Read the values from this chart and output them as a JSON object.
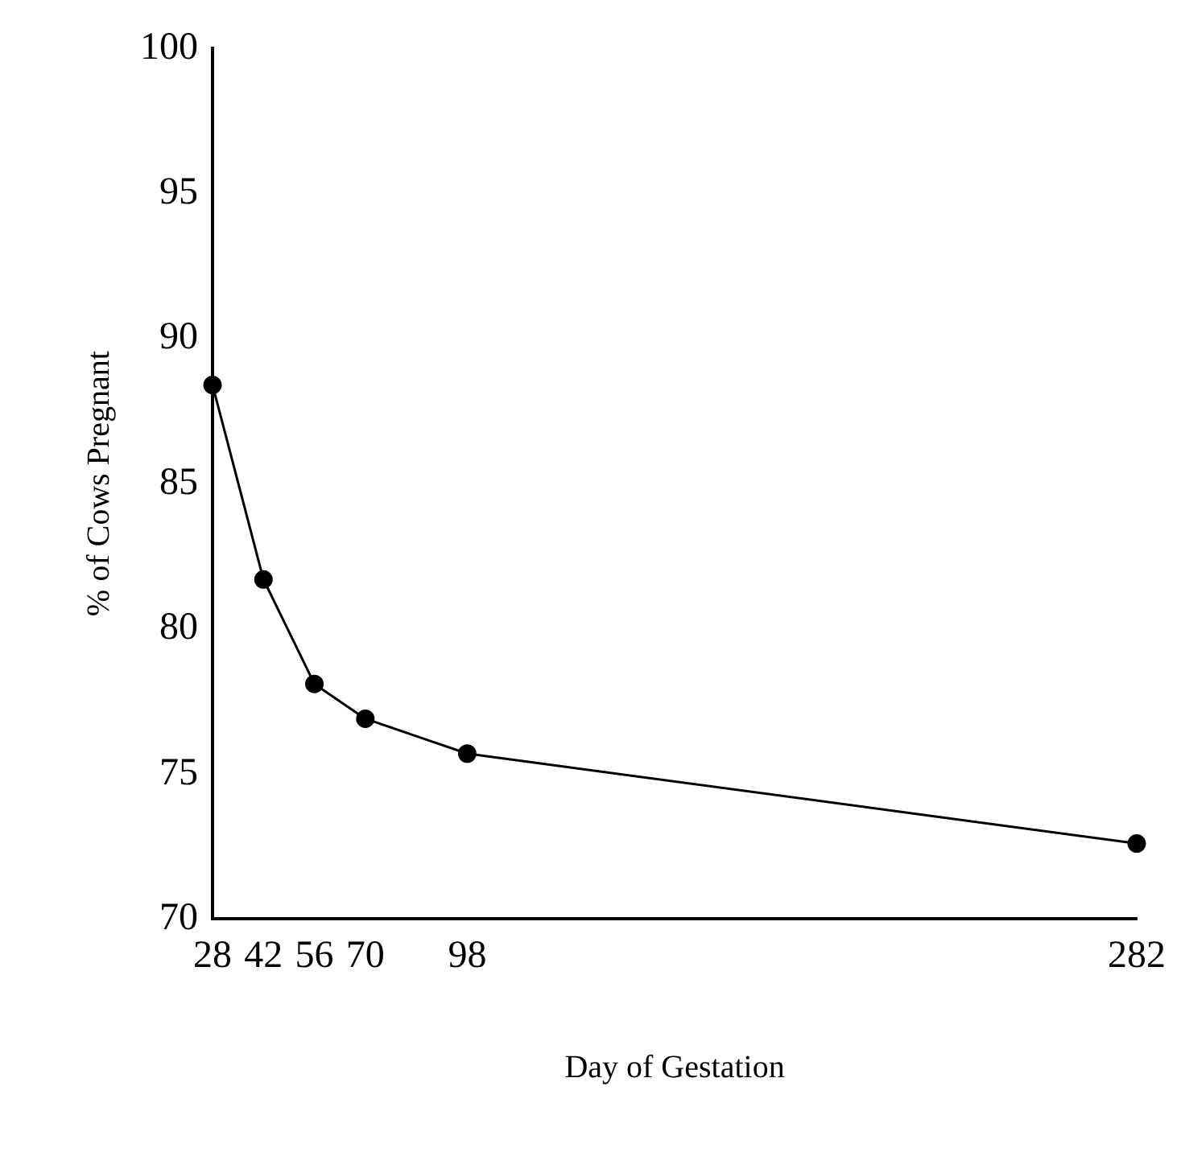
{
  "chart_data": {
    "type": "line",
    "xlabel": "Day of Gestation",
    "ylabel": "% of Cows Pregnant",
    "x": [
      28,
      42,
      56,
      70,
      98,
      282
    ],
    "series": [
      {
        "color": "#000000",
        "values": [
          88.4,
          81.7,
          78.1,
          76.9,
          75.7,
          72.6
        ]
      }
    ],
    "xlim": [
      28,
      282
    ],
    "xticks": [
      28,
      42,
      56,
      70,
      98,
      282
    ],
    "ylim": [
      70,
      100
    ],
    "yticks": [
      70,
      75,
      80,
      85,
      90,
      95,
      100
    ],
    "grid": false,
    "legend": false,
    "marker": "circle",
    "line_style": "solid"
  }
}
